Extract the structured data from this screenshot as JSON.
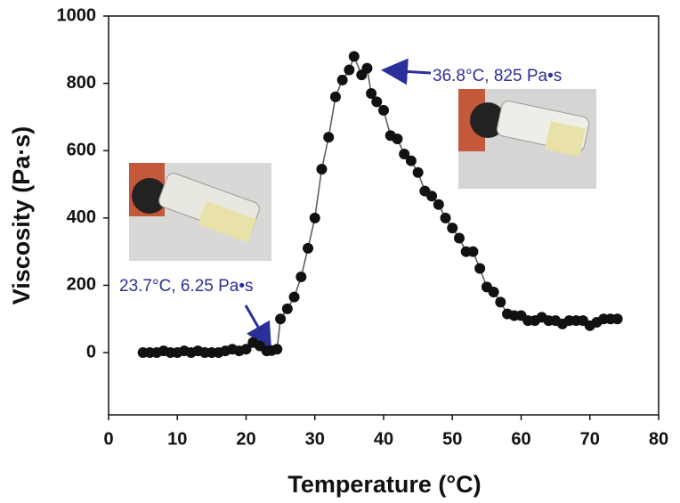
{
  "chart_data": {
    "type": "scatter",
    "xlabel": "Temperature (°C)",
    "ylabel": "Viscosity (Pa·s)",
    "xlim": [
      0,
      80
    ],
    "ylim": [
      -185,
      1000
    ],
    "xticks": [
      0,
      10,
      20,
      30,
      40,
      50,
      60,
      70,
      80
    ],
    "yticks": [
      0,
      200,
      400,
      600,
      800,
      1000
    ],
    "annotations": [
      "36.8°C, 825 Pa•s",
      "23.7°C, 6.25 Pa•s"
    ],
    "series": [
      {
        "color": "#111111",
        "line_color": "#555555",
        "x": [
          5,
          6,
          7,
          8,
          9,
          10,
          11,
          12,
          13,
          14,
          15,
          16,
          17,
          18,
          19,
          20,
          21,
          22,
          23,
          23.7,
          24.5,
          25,
          26,
          27,
          28,
          29,
          30,
          31,
          32,
          33,
          34,
          35,
          35.7,
          36.8,
          37.6,
          38.2,
          39,
          40,
          41,
          42,
          43,
          44,
          45,
          46,
          47,
          48,
          49,
          50,
          51,
          52,
          53,
          54,
          55,
          56,
          57,
          58,
          59,
          60,
          61,
          62,
          63,
          64,
          65,
          66,
          67,
          68,
          69,
          70,
          71,
          72,
          73,
          74
        ],
        "values": [
          0,
          0,
          0,
          5,
          0,
          0,
          5,
          0,
          5,
          0,
          0,
          0,
          5,
          10,
          5,
          10,
          30,
          20,
          5,
          6.25,
          10,
          100,
          130,
          165,
          225,
          310,
          400,
          545,
          640,
          760,
          810,
          840,
          880,
          825,
          845,
          770,
          745,
          720,
          645,
          635,
          590,
          570,
          535,
          480,
          465,
          440,
          400,
          370,
          340,
          300,
          300,
          250,
          195,
          180,
          150,
          115,
          110,
          110,
          95,
          95,
          105,
          95,
          95,
          85,
          95,
          95,
          95,
          80,
          90,
          100,
          100,
          100
        ]
      }
    ]
  }
}
